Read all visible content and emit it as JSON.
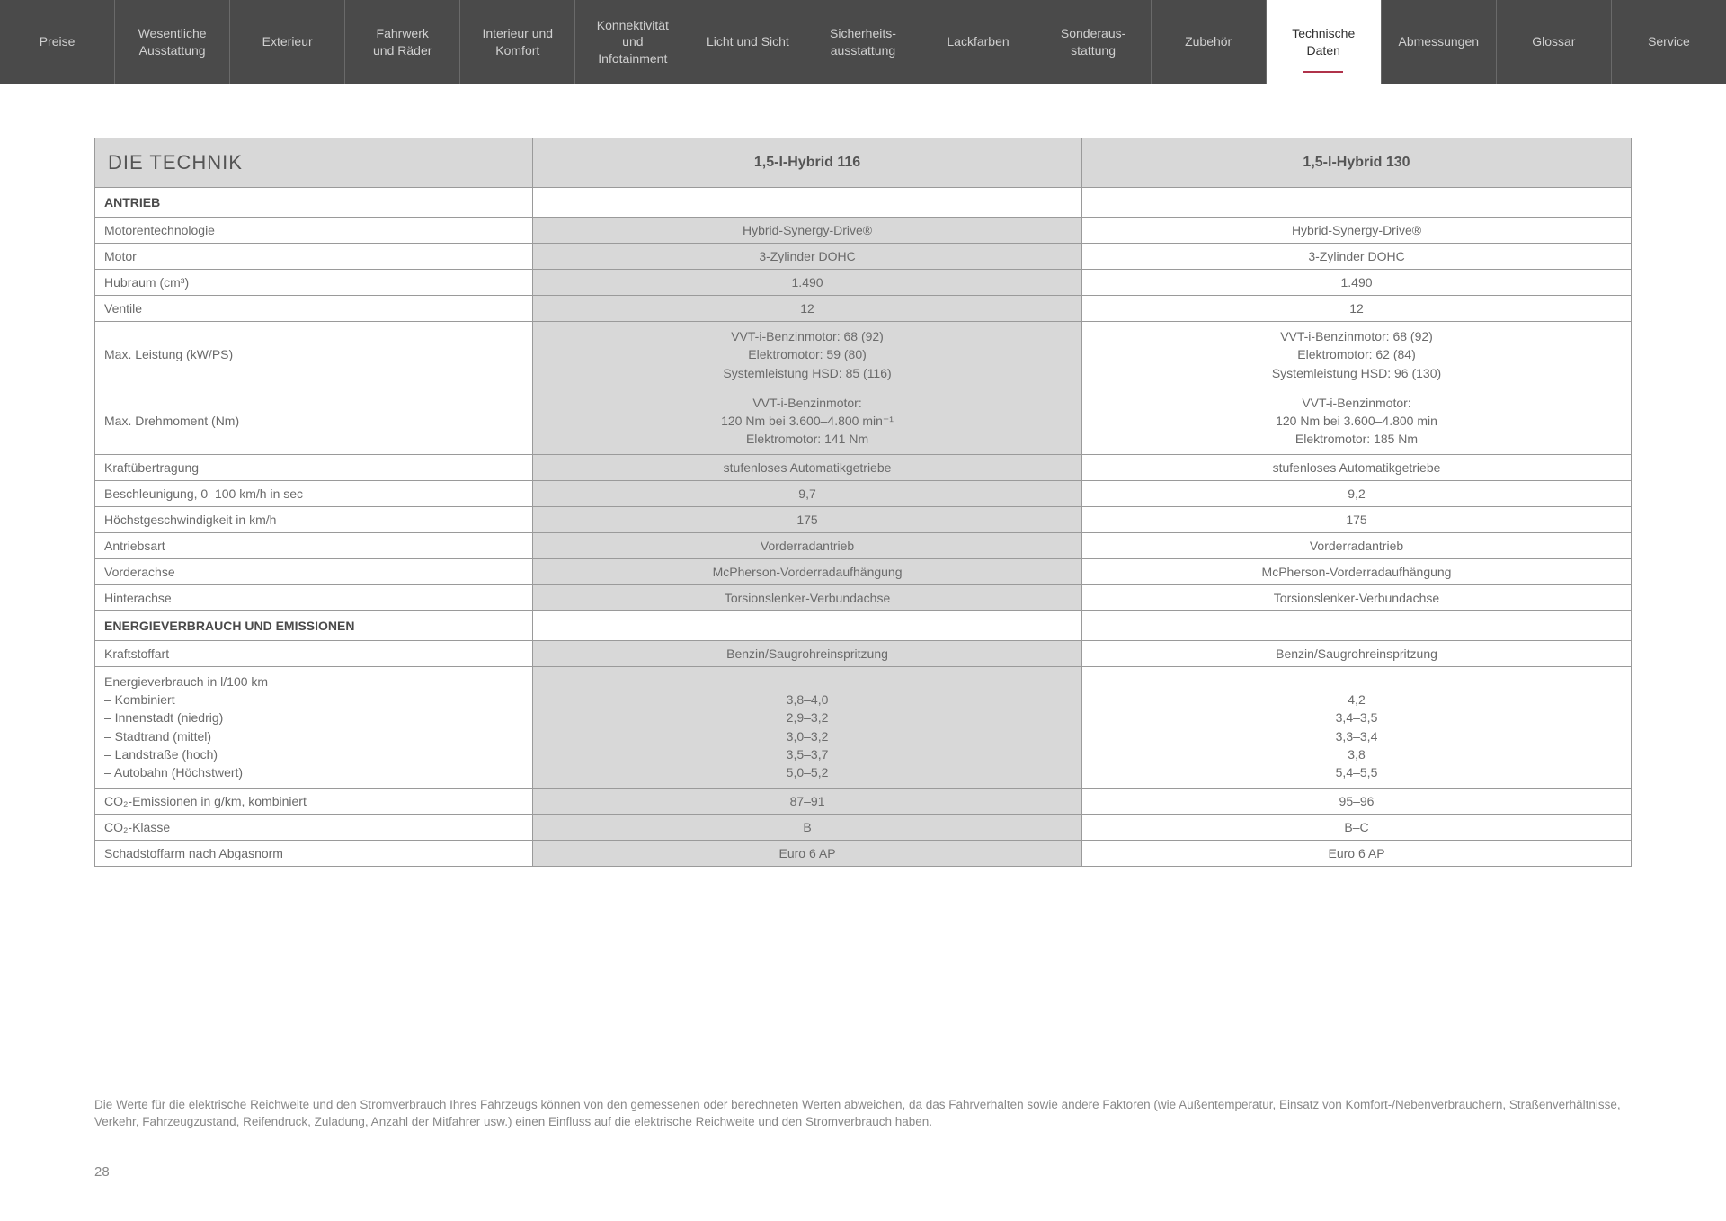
{
  "nav": {
    "items": [
      {
        "label": "Preise",
        "active": false
      },
      {
        "label": "Wesentliche\nAusstattung",
        "active": false
      },
      {
        "label": "Exterieur",
        "active": false
      },
      {
        "label": "Fahrwerk\nund Räder",
        "active": false
      },
      {
        "label": "Interieur und\nKomfort",
        "active": false
      },
      {
        "label": "Konnektivität\nund\nInfotainment",
        "active": false
      },
      {
        "label": "Licht und Sicht",
        "active": false
      },
      {
        "label": "Sicherheits-\nausstattung",
        "active": false
      },
      {
        "label": "Lackfarben",
        "active": false
      },
      {
        "label": "Sonderaus-\nstattung",
        "active": false
      },
      {
        "label": "Zubehör",
        "active": false
      },
      {
        "label": "Technische\nDaten",
        "active": true
      },
      {
        "label": "Abmessungen",
        "active": false
      },
      {
        "label": "Glossar",
        "active": false
      },
      {
        "label": "Service",
        "active": false
      }
    ]
  },
  "table": {
    "title": "DIE TECHNIK",
    "variant1": "1,5-l-Hybrid 116",
    "variant2": "1,5-l-Hybrid 130",
    "sections": [
      {
        "heading": "ANTRIEB",
        "rows": [
          {
            "label": "Motorentechnologie",
            "v1": "Hybrid-Synergy-Drive®",
            "v2": "Hybrid-Synergy-Drive®"
          },
          {
            "label": "Motor",
            "v1": "3-Zylinder DOHC",
            "v2": "3-Zylinder DOHC"
          },
          {
            "label": "Hubraum (cm³)",
            "v1": "1.490",
            "v2": "1.490"
          },
          {
            "label": "Ventile",
            "v1": "12",
            "v2": "12"
          },
          {
            "label": "Max. Leistung (kW/PS)",
            "v1": "VVT-i-Benzinmotor: 68 (92)\nElektromotor: 59 (80)\nSystemleistung HSD: 85 (116)",
            "v2": "VVT-i-Benzinmotor: 68 (92)\nElektromotor: 62 (84)\nSystemleistung HSD: 96 (130)"
          },
          {
            "label": "Max. Drehmoment (Nm)",
            "v1": "VVT-i-Benzinmotor:\n120 Nm bei 3.600–4.800 min⁻¹\nElektromotor: 141 Nm",
            "v2": "VVT-i-Benzinmotor:\n120 Nm bei 3.600–4.800 min\nElektromotor: 185 Nm"
          },
          {
            "label": "Kraftübertragung",
            "v1": "stufenloses Automatikgetriebe",
            "v2": "stufenloses Automatikgetriebe"
          },
          {
            "label": "Beschleunigung, 0–100 km/h in sec",
            "v1": "9,7",
            "v2": "9,2"
          },
          {
            "label": "Höchstgeschwindigkeit in km/h",
            "v1": "175",
            "v2": "175"
          },
          {
            "label": "Antriebsart",
            "v1": "Vorderradantrieb",
            "v2": "Vorderradantrieb"
          },
          {
            "label": "Vorderachse",
            "v1": "McPherson-Vorderradaufhängung",
            "v2": "McPherson-Vorderradaufhängung"
          },
          {
            "label": "Hinterachse",
            "v1": "Torsionslenker-Verbundachse",
            "v2": "Torsionslenker-Verbundachse"
          }
        ]
      },
      {
        "heading": "ENERGIEVERBRAUCH UND EMISSIONEN",
        "rows": [
          {
            "label": "Kraftstoffart",
            "v1": "Benzin/Saugrohreinspritzung",
            "v2": "Benzin/Saugrohreinspritzung"
          },
          {
            "label": "Energieverbrauch in l/100 km\n– Kombiniert\n– Innenstadt (niedrig)\n– Stadtrand (mittel)\n– Landstraße (hoch)\n– Autobahn (Höchstwert)",
            "v1": "\n3,8–4,0\n2,9–3,2\n3,0–3,2\n3,5–3,7\n5,0–5,2",
            "v2": "\n4,2\n3,4–3,5\n3,3–3,4\n3,8\n5,4–5,5"
          },
          {
            "label": "CO₂-Emissionen in g/km, kombiniert",
            "v1": "87–91",
            "v2": "95–96"
          },
          {
            "label": "CO₂-Klasse",
            "v1": "B",
            "v2": "B–C"
          },
          {
            "label": "Schadstoffarm nach Abgasnorm",
            "v1": "Euro 6 AP",
            "v2": "Euro 6 AP"
          }
        ]
      }
    ]
  },
  "footnote": "Die Werte für die elektrische Reichweite und den Stromverbrauch Ihres Fahrzeugs können von den gemessenen oder berechneten Werten abweichen, da das Fahrverhalten sowie andere Faktoren (wie Außentemperatur, Einsatz von Komfort-/Nebenverbrauchern, Straßenverhältnisse, Verkehr, Fahrzeugzustand, Reifendruck, Zuladung, Anzahl der Mitfahrer usw.) einen Einfluss auf die elektrische Reichweite und den Stromverbrauch haben.",
  "pageNumber": "28",
  "colors": {
    "navBg": "#4a4a4a",
    "navText": "#d0d0d0",
    "navBorder": "#6a6a6a",
    "activeUnderline": "#b0324a",
    "tableBorder": "#9a9a9a",
    "shadedCell": "#d8d8d8",
    "text": "#6a6a6a"
  }
}
